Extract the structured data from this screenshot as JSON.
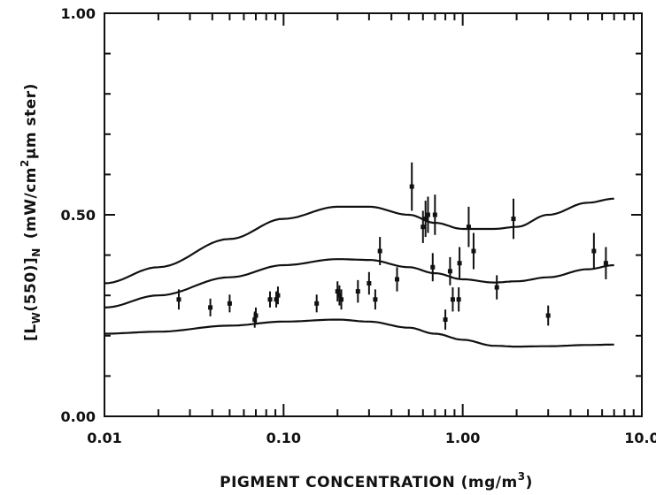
{
  "chart_data": {
    "type": "scatter",
    "title": "",
    "xlabel": "PIGMENT CONCENTRATION (mg/m",
    "xlabel_superscript": "3",
    "xlabel_close": ")",
    "ylabel": "[L",
    "ylabel_sub_w": "W",
    "ylabel_mid": "(550)]",
    "ylabel_sub_n": "N",
    "ylabel_units_open": "(mW/cm",
    "ylabel_units_sup": "2",
    "ylabel_units_close": "μm ster)",
    "x_scale": "log",
    "xlim": [
      0.01,
      10.0
    ],
    "ylim": [
      0.0,
      1.0
    ],
    "grid": false,
    "x_ticks": [
      {
        "value": 0.01,
        "label": "0.01"
      },
      {
        "value": 0.1,
        "label": "0.10"
      },
      {
        "value": 1.0,
        "label": "1.00"
      },
      {
        "value": 10.0,
        "label": "10.0"
      }
    ],
    "y_ticks": [
      {
        "value": 0.0,
        "label": "0.00"
      },
      {
        "value": 0.5,
        "label": "0.50"
      },
      {
        "value": 1.0,
        "label": "1.00"
      }
    ],
    "points": [
      {
        "x": 0.026,
        "y": 0.29,
        "err": 0.025
      },
      {
        "x": 0.039,
        "y": 0.27,
        "err": 0.022
      },
      {
        "x": 0.05,
        "y": 0.28,
        "err": 0.022
      },
      {
        "x": 0.069,
        "y": 0.24,
        "err": 0.02
      },
      {
        "x": 0.07,
        "y": 0.25,
        "err": 0.02
      },
      {
        "x": 0.084,
        "y": 0.29,
        "err": 0.02
      },
      {
        "x": 0.091,
        "y": 0.29,
        "err": 0.02
      },
      {
        "x": 0.093,
        "y": 0.3,
        "err": 0.022
      },
      {
        "x": 0.153,
        "y": 0.28,
        "err": 0.022
      },
      {
        "x": 0.2,
        "y": 0.31,
        "err": 0.025
      },
      {
        "x": 0.205,
        "y": 0.3,
        "err": 0.025
      },
      {
        "x": 0.21,
        "y": 0.29,
        "err": 0.025
      },
      {
        "x": 0.26,
        "y": 0.31,
        "err": 0.028
      },
      {
        "x": 0.3,
        "y": 0.33,
        "err": 0.028
      },
      {
        "x": 0.325,
        "y": 0.29,
        "err": 0.025
      },
      {
        "x": 0.345,
        "y": 0.41,
        "err": 0.035
      },
      {
        "x": 0.43,
        "y": 0.34,
        "err": 0.03
      },
      {
        "x": 0.52,
        "y": 0.57,
        "err": 0.06
      },
      {
        "x": 0.6,
        "y": 0.47,
        "err": 0.04
      },
      {
        "x": 0.62,
        "y": 0.49,
        "err": 0.045
      },
      {
        "x": 0.64,
        "y": 0.5,
        "err": 0.045
      },
      {
        "x": 0.68,
        "y": 0.37,
        "err": 0.035
      },
      {
        "x": 0.7,
        "y": 0.5,
        "err": 0.05
      },
      {
        "x": 0.8,
        "y": 0.24,
        "err": 0.025
      },
      {
        "x": 0.85,
        "y": 0.36,
        "err": 0.035
      },
      {
        "x": 0.88,
        "y": 0.29,
        "err": 0.03
      },
      {
        "x": 0.95,
        "y": 0.29,
        "err": 0.03
      },
      {
        "x": 0.96,
        "y": 0.38,
        "err": 0.04
      },
      {
        "x": 1.08,
        "y": 0.47,
        "err": 0.05
      },
      {
        "x": 1.15,
        "y": 0.41,
        "err": 0.045
      },
      {
        "x": 1.55,
        "y": 0.32,
        "err": 0.03
      },
      {
        "x": 1.92,
        "y": 0.49,
        "err": 0.05
      },
      {
        "x": 3.0,
        "y": 0.25,
        "err": 0.025
      },
      {
        "x": 5.4,
        "y": 0.41,
        "err": 0.045
      },
      {
        "x": 6.3,
        "y": 0.38,
        "err": 0.04
      }
    ],
    "curves": [
      {
        "x": [
          0.01,
          0.02,
          0.05,
          0.1,
          0.2,
          0.3,
          0.5,
          0.7,
          1.0,
          1.5,
          2.0,
          3.0,
          5.0,
          7.0
        ],
        "y": [
          0.33,
          0.37,
          0.44,
          0.49,
          0.52,
          0.52,
          0.5,
          0.48,
          0.465,
          0.465,
          0.47,
          0.5,
          0.53,
          0.54
        ]
      },
      {
        "x": [
          0.01,
          0.02,
          0.05,
          0.1,
          0.2,
          0.3,
          0.5,
          0.7,
          1.0,
          1.5,
          2.0,
          3.0,
          5.0,
          7.0
        ],
        "y": [
          0.27,
          0.3,
          0.345,
          0.375,
          0.39,
          0.388,
          0.37,
          0.355,
          0.34,
          0.332,
          0.335,
          0.345,
          0.365,
          0.375
        ]
      },
      {
        "x": [
          0.01,
          0.02,
          0.05,
          0.1,
          0.2,
          0.3,
          0.5,
          0.7,
          1.0,
          1.5,
          2.0,
          3.0,
          5.0,
          7.0
        ],
        "y": [
          0.205,
          0.21,
          0.225,
          0.235,
          0.24,
          0.235,
          0.22,
          0.205,
          0.19,
          0.175,
          0.173,
          0.174,
          0.177,
          0.178
        ]
      }
    ]
  }
}
